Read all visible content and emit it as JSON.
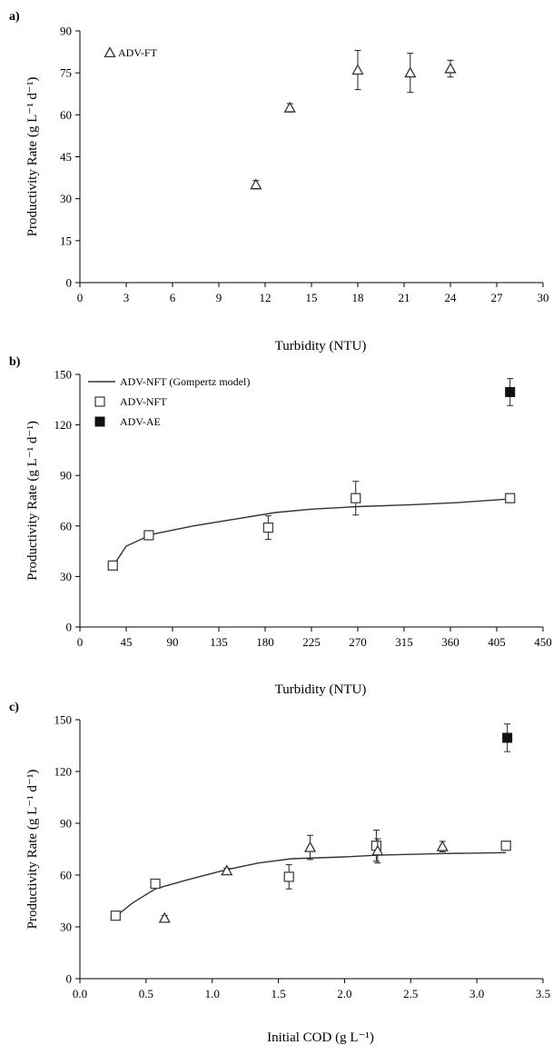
{
  "chart_data": [
    {
      "type": "scatter",
      "panel_label": "a)",
      "xlabel": "Turbidity (NTU)",
      "ylabel": "Productivity Rate (g L⁻¹ d⁻¹)",
      "xlim": [
        0,
        30
      ],
      "ylim": [
        0,
        90
      ],
      "xticks": [
        "0",
        "3",
        "6",
        "9",
        "12",
        "15",
        "18",
        "21",
        "24",
        "27",
        "30"
      ],
      "yticks": [
        "0",
        "15",
        "30",
        "45",
        "60",
        "75",
        "90"
      ],
      "legend_position": "top-left",
      "series": [
        {
          "name": "ADV-FT",
          "marker": "triangle-open",
          "points": [
            {
              "x": 11.4,
              "y": 35,
              "err": 1.5
            },
            {
              "x": 13.6,
              "y": 62.5,
              "err": 1.5
            },
            {
              "x": 18.0,
              "y": 76,
              "err": 7
            },
            {
              "x": 21.4,
              "y": 75,
              "err": 7
            },
            {
              "x": 24.0,
              "y": 76.5,
              "err": 3
            }
          ]
        }
      ]
    },
    {
      "type": "scatter",
      "panel_label": "b)",
      "xlabel": "Turbidity (NTU)",
      "ylabel": "Productivity Rate (g L⁻¹ d⁻¹)",
      "xlim": [
        0,
        450
      ],
      "ylim": [
        0,
        150
      ],
      "xticks": [
        "0",
        "45",
        "90",
        "135",
        "180",
        "225",
        "270",
        "315",
        "360",
        "405",
        "450"
      ],
      "yticks": [
        "0",
        "30",
        "60",
        "90",
        "120",
        "150"
      ],
      "legend_position": "top-left",
      "series": [
        {
          "name": "ADV-NFT (Gompertz model)",
          "marker": "line",
          "points": [
            {
              "x": 32,
              "y": 36
            },
            {
              "x": 45,
              "y": 48
            },
            {
              "x": 70,
              "y": 55
            },
            {
              "x": 110,
              "y": 60
            },
            {
              "x": 150,
              "y": 64
            },
            {
              "x": 190,
              "y": 68
            },
            {
              "x": 225,
              "y": 70
            },
            {
              "x": 270,
              "y": 71.5
            },
            {
              "x": 320,
              "y": 72.5
            },
            {
              "x": 370,
              "y": 74
            },
            {
              "x": 418,
              "y": 76
            }
          ]
        },
        {
          "name": "ADV-NFT",
          "marker": "square-open",
          "points": [
            {
              "x": 32,
              "y": 36.5,
              "err": 2
            },
            {
              "x": 67,
              "y": 54.5,
              "err": 2.5
            },
            {
              "x": 183,
              "y": 59,
              "err": 7
            },
            {
              "x": 268,
              "y": 76.5,
              "err": 10
            },
            {
              "x": 418,
              "y": 76.5,
              "err": 1.5
            }
          ]
        },
        {
          "name": "ADV-AE",
          "marker": "square-filled",
          "points": [
            {
              "x": 418,
              "y": 139.5,
              "err": 8
            }
          ]
        }
      ]
    },
    {
      "type": "scatter",
      "panel_label": "c)",
      "xlabel": "Initial COD (g L⁻¹)",
      "ylabel": "Productivity Rate (g L⁻¹ d⁻¹)",
      "xlim": [
        0.0,
        3.5
      ],
      "ylim": [
        0,
        150
      ],
      "xticks": [
        "0.0",
        "0.5",
        "1.0",
        "1.5",
        "2.0",
        "2.5",
        "3.0",
        "3.5"
      ],
      "yticks": [
        "0",
        "30",
        "60",
        "90",
        "120",
        "150"
      ],
      "series": [
        {
          "name": "ADV-NFT (Gompertz model)",
          "marker": "line",
          "points": [
            {
              "x": 0.27,
              "y": 36
            },
            {
              "x": 0.4,
              "y": 44
            },
            {
              "x": 0.57,
              "y": 52
            },
            {
              "x": 0.8,
              "y": 57
            },
            {
              "x": 1.1,
              "y": 63
            },
            {
              "x": 1.35,
              "y": 67
            },
            {
              "x": 1.6,
              "y": 69.5
            },
            {
              "x": 2.0,
              "y": 70.5
            },
            {
              "x": 2.25,
              "y": 71.5
            },
            {
              "x": 2.75,
              "y": 72.5
            },
            {
              "x": 3.22,
              "y": 73
            }
          ]
        },
        {
          "name": "ADV-NFT",
          "marker": "square-open",
          "points": [
            {
              "x": 0.27,
              "y": 36.5,
              "err": 2
            },
            {
              "x": 0.57,
              "y": 55,
              "err": 2.5
            },
            {
              "x": 1.58,
              "y": 59,
              "err": 7
            },
            {
              "x": 2.24,
              "y": 77,
              "err": 9
            },
            {
              "x": 3.22,
              "y": 77,
              "err": 1.5
            }
          ]
        },
        {
          "name": "ADV-FT",
          "marker": "triangle-open",
          "points": [
            {
              "x": 0.64,
              "y": 35,
              "err": 1.5
            },
            {
              "x": 1.11,
              "y": 62.5,
              "err": 1.5
            },
            {
              "x": 1.74,
              "y": 76,
              "err": 7
            },
            {
              "x": 2.25,
              "y": 74,
              "err": 7
            },
            {
              "x": 2.74,
              "y": 76.5,
              "err": 3
            }
          ]
        },
        {
          "name": "ADV-AE",
          "marker": "square-filled",
          "points": [
            {
              "x": 3.23,
              "y": 139.5,
              "err": 8
            }
          ]
        }
      ]
    }
  ]
}
